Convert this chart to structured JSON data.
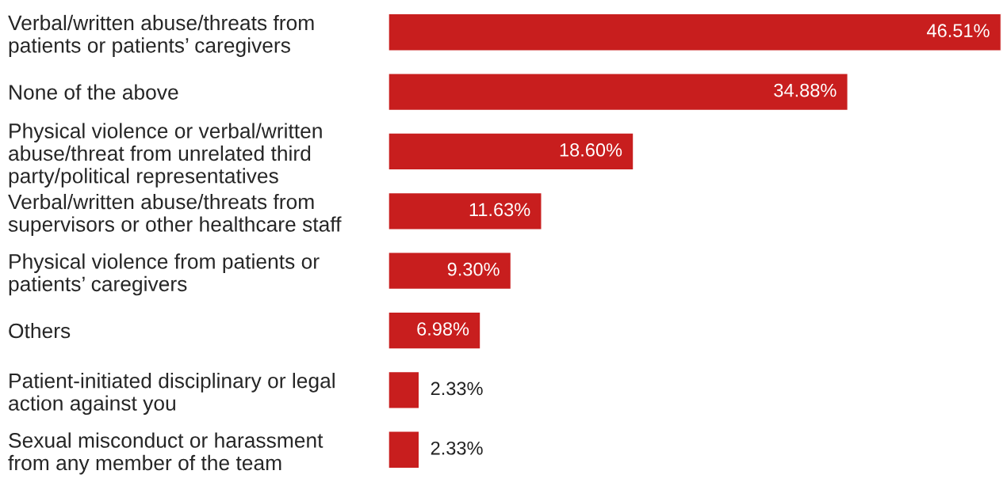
{
  "chart_data": {
    "type": "bar",
    "orientation": "horizontal",
    "categories": [
      "Verbal/written abuse/threats from\npatients or patients’ caregivers",
      "None of the above",
      "Physical violence or verbal/written\nabuse/threat from unrelated third\nparty/political representatives",
      "Verbal/written abuse/threats from\nsupervisors or other healthcare staff",
      "Physical violence from patients or\npatients’ caregivers",
      "Others",
      "Patient-initiated disciplinary or legal\naction against you",
      "Sexual misconduct or harassment\nfrom any member of the team"
    ],
    "values": [
      46.51,
      34.88,
      18.6,
      11.63,
      9.3,
      6.98,
      2.33,
      2.33
    ],
    "value_labels": [
      "46.51%",
      "34.88%",
      "18.60%",
      "11.63%",
      "9.30%",
      "6.98%",
      "2.33%",
      "2.33%"
    ],
    "color": "#c81e1e",
    "grid": false,
    "legend": false
  }
}
